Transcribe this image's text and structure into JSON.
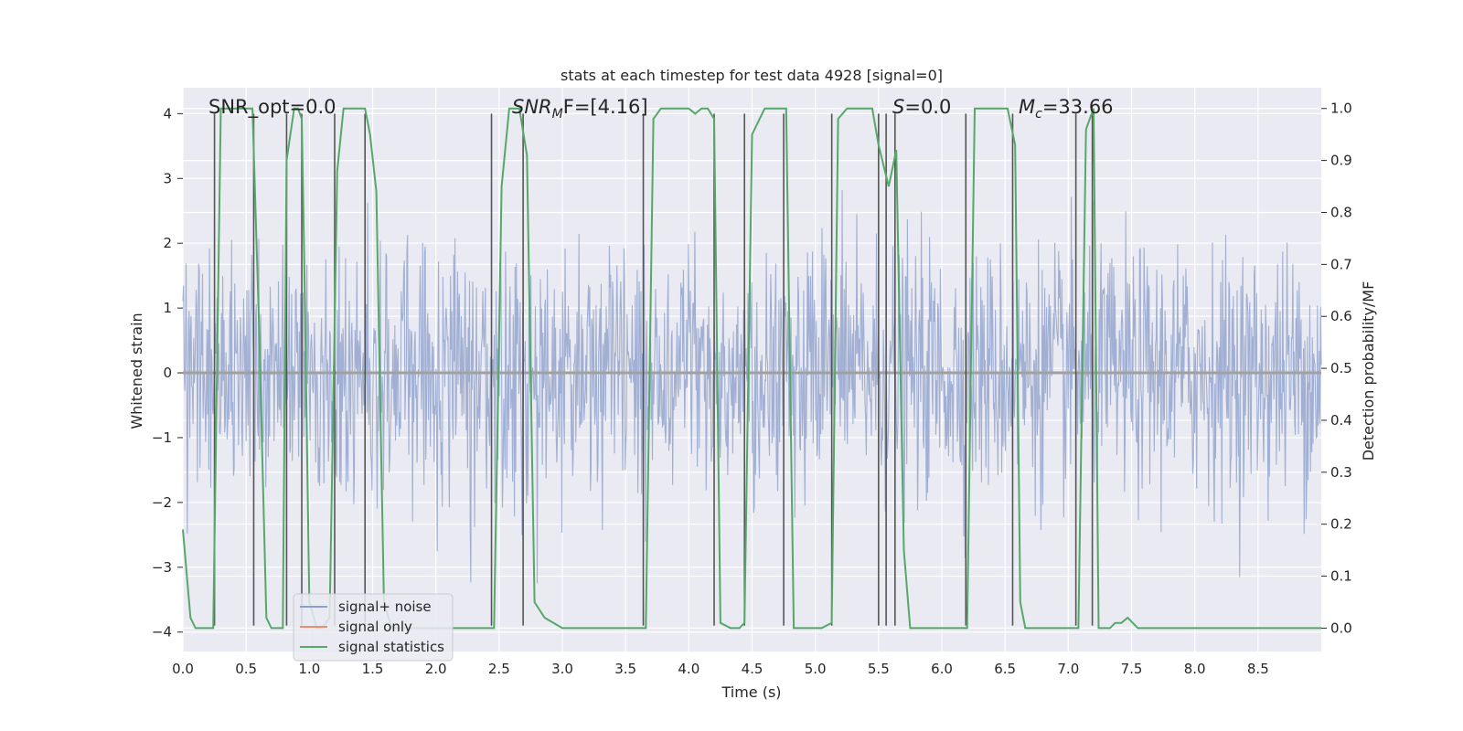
{
  "chart_data": {
    "type": "line",
    "title": "stats at each timestep for test data 4928 [signal=0]",
    "xlabel": "Time (s)",
    "ylabel_left": "Whitened strain",
    "ylabel_right": "Detection probability/MF",
    "xlim": [
      0.0,
      9.0
    ],
    "ylim_left": [
      -4.3,
      4.4
    ],
    "ylim_right": [
      -0.045,
      1.04
    ],
    "x_ticks": [
      "0.0",
      "0.5",
      "1.0",
      "1.5",
      "2.0",
      "2.5",
      "3.0",
      "3.5",
      "4.0",
      "4.5",
      "5.0",
      "5.5",
      "6.0",
      "6.5",
      "7.0",
      "7.5",
      "8.0",
      "8.5"
    ],
    "y_left_ticks": [
      "4",
      "3",
      "2",
      "1",
      "0",
      "−1",
      "−2",
      "−3",
      "−4"
    ],
    "y_right_ticks": [
      "1.0",
      "0.9",
      "0.8",
      "0.7",
      "0.6",
      "0.5",
      "0.4",
      "0.3",
      "0.2",
      "0.1",
      "0.0"
    ],
    "annotations": {
      "snr_opt": "SNR_opt=0.0",
      "snr_mf_main": "SNR",
      "snr_mf_sub": "M",
      "snr_mf_rest": "F=[4.16]",
      "s_label": "S",
      "s_rest": "=0.0",
      "mc_main": "M",
      "mc_sub": "c",
      "mc_rest": "=33.66"
    },
    "grid": true,
    "legend_position": "lower-left",
    "series": [
      {
        "name": "signal+ noise",
        "axis": "left",
        "color": "#8da0cb",
        "description": "whitened noise strain, amplitude roughly ±2 with peaks to ±4",
        "seed": 4928
      },
      {
        "name": "signal only",
        "axis": "left",
        "color": "#e8906e",
        "values_constant": 0.0
      },
      {
        "name": "signal statistics",
        "axis": "right",
        "color": "#55a868",
        "x": [
          0.0,
          0.06,
          0.1,
          0.14,
          0.2,
          0.24,
          0.3,
          0.4,
          0.5,
          0.55,
          0.6,
          0.66,
          0.7,
          0.75,
          0.79,
          0.82,
          0.88,
          0.91,
          0.94,
          0.96,
          1.0,
          1.06,
          1.1,
          1.16,
          1.22,
          1.27,
          1.35,
          1.44,
          1.48,
          1.53,
          1.59,
          1.65,
          2.0,
          2.4,
          2.46,
          2.52,
          2.58,
          2.62,
          2.66,
          2.72,
          2.78,
          2.86,
          3.0,
          3.3,
          3.62,
          3.66,
          3.72,
          3.78,
          3.85,
          4.0,
          4.05,
          4.1,
          4.15,
          4.2,
          4.25,
          4.33,
          4.4,
          4.44,
          4.5,
          4.6,
          4.73,
          4.77,
          4.83,
          4.9,
          5.05,
          5.13,
          5.18,
          5.25,
          5.35,
          5.45,
          5.5,
          5.58,
          5.64,
          5.7,
          5.75,
          5.82,
          5.9,
          6.0,
          6.12,
          6.2,
          6.26,
          6.34,
          6.45,
          6.52,
          6.58,
          6.62,
          6.66,
          6.75,
          7.0,
          7.08,
          7.14,
          7.2,
          7.24,
          7.28,
          7.33,
          7.37,
          7.42,
          7.47,
          7.55,
          7.7,
          8.0,
          8.3,
          8.4,
          8.47,
          8.6,
          9.0
        ],
        "values": [
          0.19,
          0.02,
          0.0,
          0.0,
          0.0,
          0.0,
          1.0,
          1.0,
          1.0,
          1.0,
          0.6,
          0.02,
          0.0,
          0.0,
          0.0,
          0.9,
          1.0,
          1.0,
          0.98,
          0.7,
          0.05,
          0.0,
          0.0,
          0.02,
          0.88,
          1.0,
          1.0,
          1.0,
          0.95,
          0.84,
          0.05,
          0.0,
          0.0,
          0.0,
          0.0,
          0.85,
          1.0,
          1.0,
          1.0,
          0.91,
          0.05,
          0.02,
          0.0,
          0.0,
          0.0,
          0.0,
          0.98,
          1.0,
          1.0,
          1.0,
          0.99,
          1.0,
          1.0,
          0.98,
          0.01,
          0.0,
          0.0,
          0.01,
          0.95,
          1.0,
          1.0,
          1.0,
          0.0,
          0.0,
          0.0,
          0.01,
          0.98,
          1.0,
          1.0,
          1.0,
          0.93,
          0.85,
          0.92,
          0.15,
          0.0,
          0.0,
          0.0,
          0.0,
          0.0,
          0.0,
          1.0,
          1.0,
          1.0,
          1.0,
          0.93,
          0.05,
          0.0,
          0.0,
          0.0,
          0.0,
          0.96,
          1.0,
          0.0,
          0.0,
          0.0,
          0.01,
          0.01,
          0.02,
          0.0,
          0.0,
          0.0,
          0.0,
          0.0,
          0.0,
          0.0,
          0.0
        ]
      }
    ],
    "vertical_lines_x": [
      0.25,
      0.56,
      0.82,
      0.94,
      1.2,
      1.44,
      2.44,
      2.69,
      3.64,
      4.2,
      4.44,
      4.75,
      5.13,
      5.5,
      5.56,
      5.63,
      6.19,
      6.56,
      7.06,
      7.19
    ]
  },
  "legend": {
    "signal_noise": "signal+ noise",
    "signal_only": "signal only",
    "signal_stats": "signal statistics"
  },
  "colors": {
    "background": "#eaeaf2",
    "grid": "#ffffff",
    "noise": "#8da0cb",
    "signal": "#e8906e",
    "stats": "#55a868",
    "vline": "#555555"
  }
}
